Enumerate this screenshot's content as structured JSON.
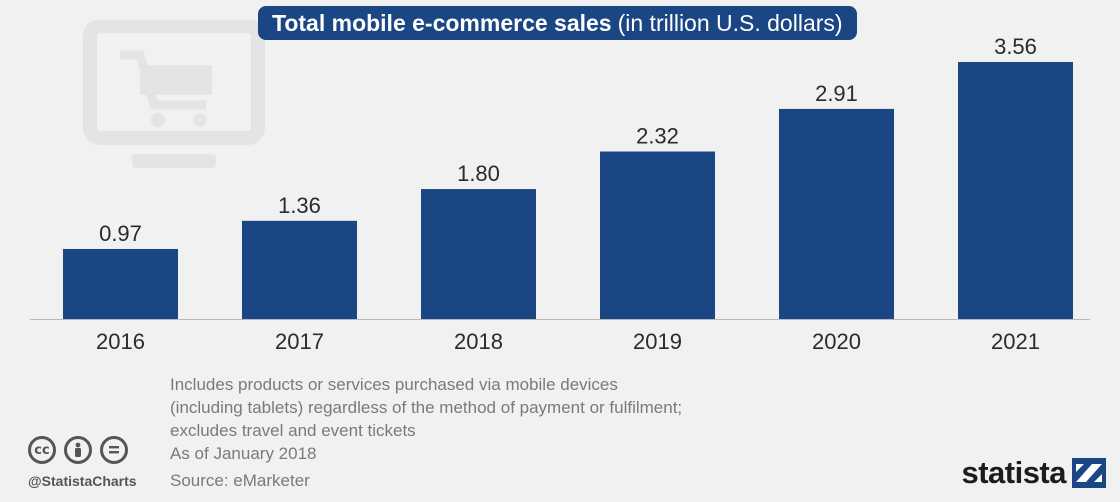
{
  "header": {
    "title_bold": "Total mobile e-commerce sales",
    "title_unit": "(in trillion U.S. dollars)"
  },
  "chart_data": {
    "type": "bar",
    "title": "Total mobile e-commerce sales (in trillion U.S. dollars)",
    "categories": [
      "2016",
      "2017",
      "2018",
      "2019",
      "2020",
      "2021"
    ],
    "values": [
      0.97,
      1.36,
      1.8,
      2.32,
      2.91,
      3.56
    ],
    "value_labels": [
      "0.97",
      "1.36",
      "1.80",
      "2.32",
      "2.91",
      "3.56"
    ],
    "xlabel": "",
    "ylabel": "",
    "ylim": [
      0,
      3.56
    ],
    "grid": false,
    "bar_color": "#1a4684"
  },
  "notes": {
    "line1": "Includes products or services purchased via mobile devices",
    "line2": "(including tablets) regardless of the method of payment or fulfilment;",
    "line3": "excludes travel and event tickets",
    "as_of": "As of January 2018",
    "source": "Source: eMarketer"
  },
  "footer": {
    "handle": "@StatistaCharts",
    "brand": "statista",
    "cc_icons": [
      "cc-icon",
      "by-icon",
      "nd-icon"
    ]
  },
  "colors": {
    "accent": "#1a4684",
    "background": "#f1f1f1",
    "background_icon": "#e6e6e6"
  }
}
